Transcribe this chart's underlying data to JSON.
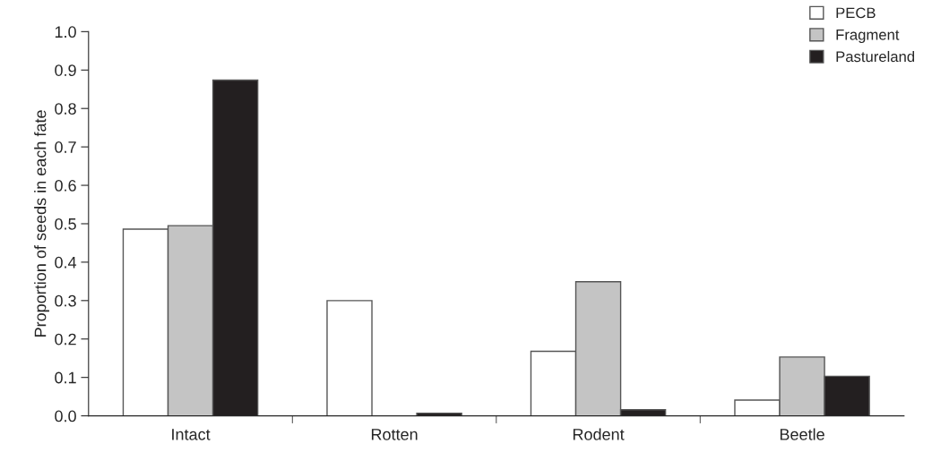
{
  "chart_data": {
    "type": "bar",
    "ylabel": "Proportion of seeds in each fate",
    "categories": [
      "Intact",
      "Rotten",
      "Rodent",
      "Beetle"
    ],
    "series": [
      {
        "name": "PECB",
        "color": "#ffffff",
        "values": [
          0.486,
          0.3,
          0.168,
          0.041
        ]
      },
      {
        "name": "Fragment",
        "color": "#c4c4c4",
        "values": [
          0.495,
          null,
          0.349,
          0.153
        ]
      },
      {
        "name": "Pastureland",
        "color": "#231f20",
        "values": [
          0.874,
          0.007,
          0.016,
          0.103
        ]
      }
    ],
    "ylim": [
      0,
      1.0
    ],
    "yticks": [
      {
        "value": 0,
        "label": "0.0"
      },
      0.1,
      0.2,
      0.3,
      0.4,
      0.5,
      0.6,
      0.7,
      0.8,
      0.9,
      {
        "value": 1.0,
        "label": "1.0"
      }
    ],
    "grid": false,
    "legend": "top right"
  }
}
